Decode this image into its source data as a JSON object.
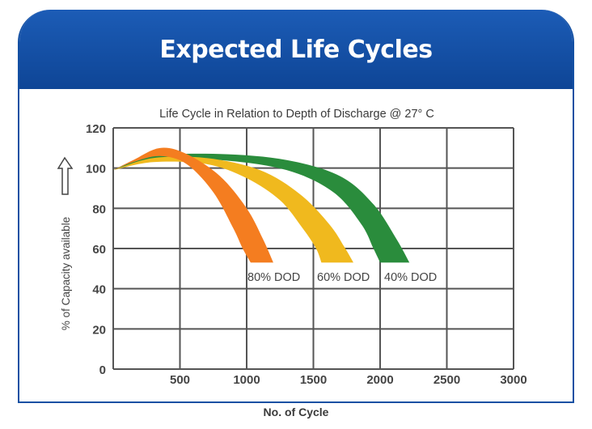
{
  "header": {
    "title": "Expected Life Cycles"
  },
  "chart_data": {
    "type": "area",
    "title": "Life Cycle in Relation to Depth of Discharge @ 27° C",
    "xlabel": "No. of Cycle",
    "ylabel": "% of Capacity available",
    "xlim": [
      0,
      3000
    ],
    "ylim": [
      0,
      120
    ],
    "xticks": [
      "500",
      "1000",
      "1500",
      "2000",
      "2500",
      "3000"
    ],
    "yticks": [
      "0",
      "20",
      "40",
      "60",
      "80",
      "100",
      "120"
    ],
    "grid": true,
    "series": [
      {
        "name": "40% DOD",
        "color": "#2a8c3c",
        "upper": [
          [
            0,
            99
          ],
          [
            300,
            106
          ],
          [
            800,
            107
          ],
          [
            1300,
            104
          ],
          [
            1700,
            96
          ],
          [
            1950,
            82
          ],
          [
            2120,
            65
          ],
          [
            2220,
            53
          ]
        ],
        "lower": [
          [
            0,
            99
          ],
          [
            300,
            104
          ],
          [
            800,
            104
          ],
          [
            1300,
            99
          ],
          [
            1650,
            88
          ],
          [
            1860,
            72
          ],
          [
            1950,
            60
          ],
          [
            2000,
            53
          ]
        ]
      },
      {
        "name": "60% DOD",
        "color": "#f0b91e",
        "upper": [
          [
            0,
            99
          ],
          [
            300,
            105
          ],
          [
            700,
            105
          ],
          [
            1100,
            99
          ],
          [
            1400,
            87
          ],
          [
            1620,
            72
          ],
          [
            1730,
            61
          ],
          [
            1800,
            53
          ]
        ],
        "lower": [
          [
            0,
            99
          ],
          [
            300,
            103
          ],
          [
            700,
            102
          ],
          [
            1000,
            95
          ],
          [
            1250,
            84
          ],
          [
            1420,
            70
          ],
          [
            1520,
            60
          ],
          [
            1560,
            53
          ]
        ]
      },
      {
        "name": "80% DOD",
        "color": "#f47d20",
        "upper": [
          [
            0,
            99
          ],
          [
            150,
            104
          ],
          [
            350,
            110
          ],
          [
            550,
            107
          ],
          [
            800,
            96
          ],
          [
            1000,
            80
          ],
          [
            1120,
            65
          ],
          [
            1200,
            53
          ]
        ],
        "lower": [
          [
            0,
            99
          ],
          [
            150,
            103
          ],
          [
            350,
            106
          ],
          [
            550,
            102
          ],
          [
            750,
            88
          ],
          [
            900,
            70
          ],
          [
            970,
            60
          ],
          [
            1030,
            53
          ]
        ]
      }
    ],
    "annotations": [
      "80% DOD",
      "60% DOD",
      "40% DOD"
    ]
  },
  "icons": {
    "y_axis_arrow": "up-arrow-icon"
  }
}
